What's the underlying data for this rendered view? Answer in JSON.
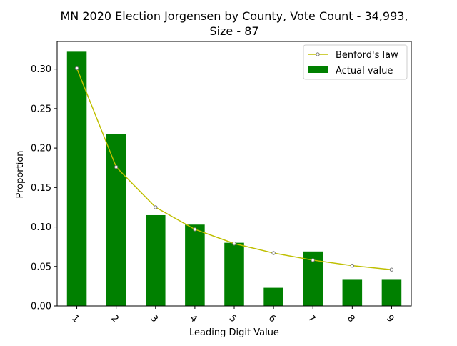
{
  "chart_data": {
    "type": "bar",
    "title_line1": "MN 2020 Election Jorgensen by County,  Vote Count - 34,993,",
    "title_line2": "Size - 87",
    "xlabel": "Leading Digit Value",
    "ylabel": "Proportion",
    "categories": [
      "1",
      "2",
      "3",
      "4",
      "5",
      "6",
      "7",
      "8",
      "9"
    ],
    "ylim": [
      0,
      0.335
    ],
    "yticks": [
      0.0,
      0.05,
      0.1,
      0.15,
      0.2,
      0.25,
      0.3
    ],
    "ytick_labels": [
      "0.00",
      "0.05",
      "0.10",
      "0.15",
      "0.20",
      "0.25",
      "0.30"
    ],
    "grid": false,
    "legend_position": "top-right",
    "series": [
      {
        "name": "Benford's law",
        "type": "line",
        "color": "#bfbf00",
        "values": [
          0.301,
          0.176,
          0.125,
          0.097,
          0.079,
          0.067,
          0.058,
          0.051,
          0.046
        ]
      },
      {
        "name": "Actual value",
        "type": "bar",
        "color": "#008000",
        "values": [
          0.322,
          0.218,
          0.115,
          0.103,
          0.08,
          0.023,
          0.069,
          0.034,
          0.034
        ]
      }
    ]
  }
}
